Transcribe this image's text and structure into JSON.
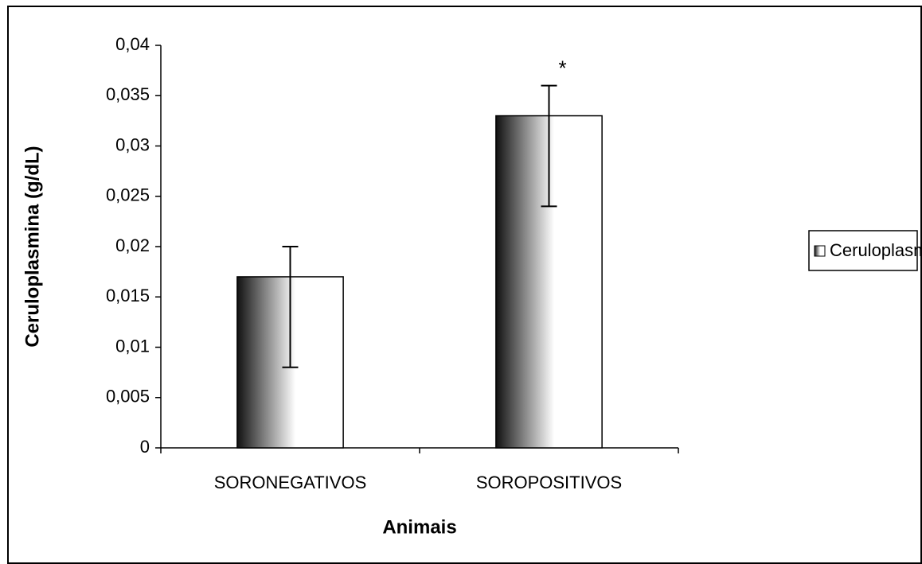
{
  "chart_data": {
    "type": "bar",
    "xlabel": "Animais",
    "ylabel": "Ceruloplasmina (g/dL)",
    "categories": [
      "SORONEGATIVOS",
      "SOROPOSITIVOS"
    ],
    "series": [
      {
        "name": "Ceruloplasmina",
        "gradient": [
          "#111111",
          "#ffffff"
        ],
        "values": [
          0.017,
          0.033
        ],
        "errors_upper": [
          0.003,
          0.003
        ],
        "errors_lower": [
          0.009,
          0.009
        ]
      }
    ],
    "annotations": [
      {
        "text": "*",
        "x": "SOROPOSITIVOS"
      }
    ],
    "ylim": [
      0,
      0.04
    ],
    "yticks": [
      0,
      {
        "value": 0.005,
        "label": "0,005"
      },
      {
        "value": 0.01,
        "label": "0,01"
      },
      {
        "value": 0.015,
        "label": "0,015"
      },
      {
        "value": 0.02,
        "label": "0,02"
      },
      {
        "value": 0.025,
        "label": "0,025"
      },
      {
        "value": 0.03,
        "label": "0,03"
      },
      {
        "value": 0.035,
        "label": "0,035"
      },
      {
        "value": 0.04,
        "label": "0,04"
      }
    ],
    "grid": false,
    "legend": "right"
  }
}
